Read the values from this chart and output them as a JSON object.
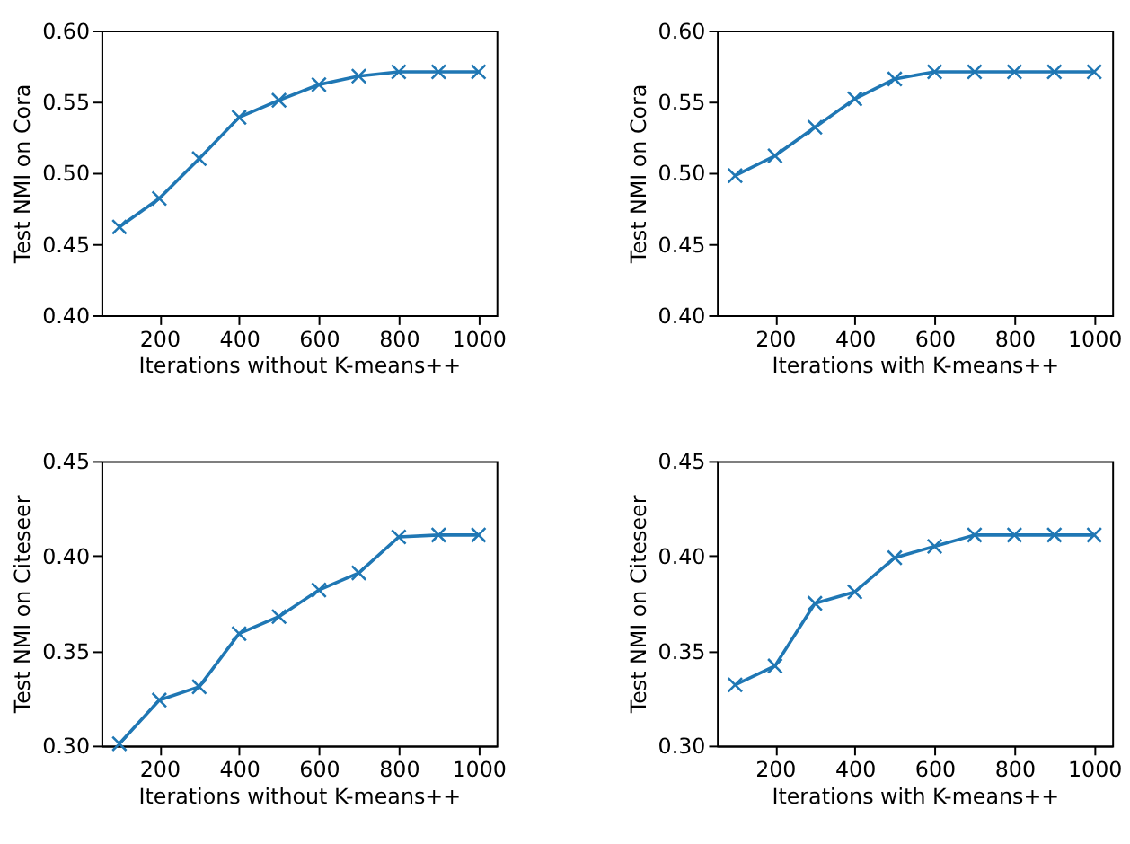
{
  "chart_data": [
    {
      "type": "line",
      "xlabel": "Iterations without K-means++",
      "ylabel": "Test NMI on Cora",
      "x": [
        100,
        200,
        300,
        400,
        500,
        600,
        700,
        800,
        900,
        1000
      ],
      "series": [
        {
          "color": "#1f77b4",
          "values": [
            0.462,
            0.482,
            0.51,
            0.539,
            0.551,
            0.562,
            0.568,
            0.571,
            0.571,
            0.571
          ]
        }
      ],
      "xlim": [
        55,
        1045
      ],
      "xticks": [
        200,
        400,
        600,
        800,
        1000
      ],
      "ylim": [
        0.4,
        0.6
      ],
      "yticks": [
        {
          "value": 0.4,
          "label": "0.40"
        },
        {
          "value": 0.45,
          "label": "0.45"
        },
        {
          "value": 0.5,
          "label": "0.50"
        },
        {
          "value": 0.55,
          "label": "0.55"
        },
        {
          "value": 0.6,
          "label": "0.60"
        }
      ],
      "marker": "cross",
      "line_style": "solid",
      "grid": false
    },
    {
      "type": "line",
      "xlabel": "Iterations with K-means++",
      "ylabel": "Test NMI on Cora",
      "x": [
        100,
        200,
        300,
        400,
        500,
        600,
        700,
        800,
        900,
        1000
      ],
      "series": [
        {
          "color": "#1f77b4",
          "values": [
            0.498,
            0.512,
            0.532,
            0.552,
            0.566,
            0.571,
            0.571,
            0.571,
            0.571,
            0.571
          ]
        }
      ],
      "xlim": [
        55,
        1045
      ],
      "xticks": [
        200,
        400,
        600,
        800,
        1000
      ],
      "ylim": [
        0.4,
        0.6
      ],
      "yticks": [
        {
          "value": 0.4,
          "label": "0.40"
        },
        {
          "value": 0.45,
          "label": "0.45"
        },
        {
          "value": 0.5,
          "label": "0.50"
        },
        {
          "value": 0.55,
          "label": "0.55"
        },
        {
          "value": 0.6,
          "label": "0.60"
        }
      ],
      "marker": "cross",
      "line_style": "solid",
      "grid": false
    },
    {
      "type": "line",
      "xlabel": "Iterations without K-means++",
      "ylabel": "Test NMI on Citeseer",
      "x": [
        100,
        200,
        300,
        400,
        500,
        600,
        700,
        800,
        900,
        1000
      ],
      "series": [
        {
          "color": "#1f77b4",
          "values": [
            0.301,
            0.324,
            0.331,
            0.359,
            0.368,
            0.382,
            0.391,
            0.41,
            0.411,
            0.411
          ]
        }
      ],
      "xlim": [
        55,
        1045
      ],
      "xticks": [
        200,
        400,
        600,
        800,
        1000
      ],
      "ylim": [
        0.3,
        0.45
      ],
      "yticks": [
        {
          "value": 0.3,
          "label": "0.30"
        },
        {
          "value": 0.35,
          "label": "0.35"
        },
        {
          "value": 0.4,
          "label": "0.40"
        },
        {
          "value": 0.45,
          "label": "0.45"
        }
      ],
      "marker": "cross",
      "line_style": "solid",
      "grid": false
    },
    {
      "type": "line",
      "xlabel": "Iterations with K-means++",
      "ylabel": "Test NMI on Citeseer",
      "x": [
        100,
        200,
        300,
        400,
        500,
        600,
        700,
        800,
        900,
        1000
      ],
      "series": [
        {
          "color": "#1f77b4",
          "values": [
            0.332,
            0.342,
            0.375,
            0.381,
            0.399,
            0.405,
            0.411,
            0.411,
            0.411,
            0.411
          ]
        }
      ],
      "xlim": [
        55,
        1045
      ],
      "xticks": [
        200,
        400,
        600,
        800,
        1000
      ],
      "ylim": [
        0.3,
        0.45
      ],
      "yticks": [
        {
          "value": 0.3,
          "label": "0.30"
        },
        {
          "value": 0.35,
          "label": "0.35"
        },
        {
          "value": 0.4,
          "label": "0.40"
        },
        {
          "value": 0.45,
          "label": "0.45"
        }
      ],
      "marker": "cross",
      "line_style": "solid",
      "grid": false
    }
  ]
}
